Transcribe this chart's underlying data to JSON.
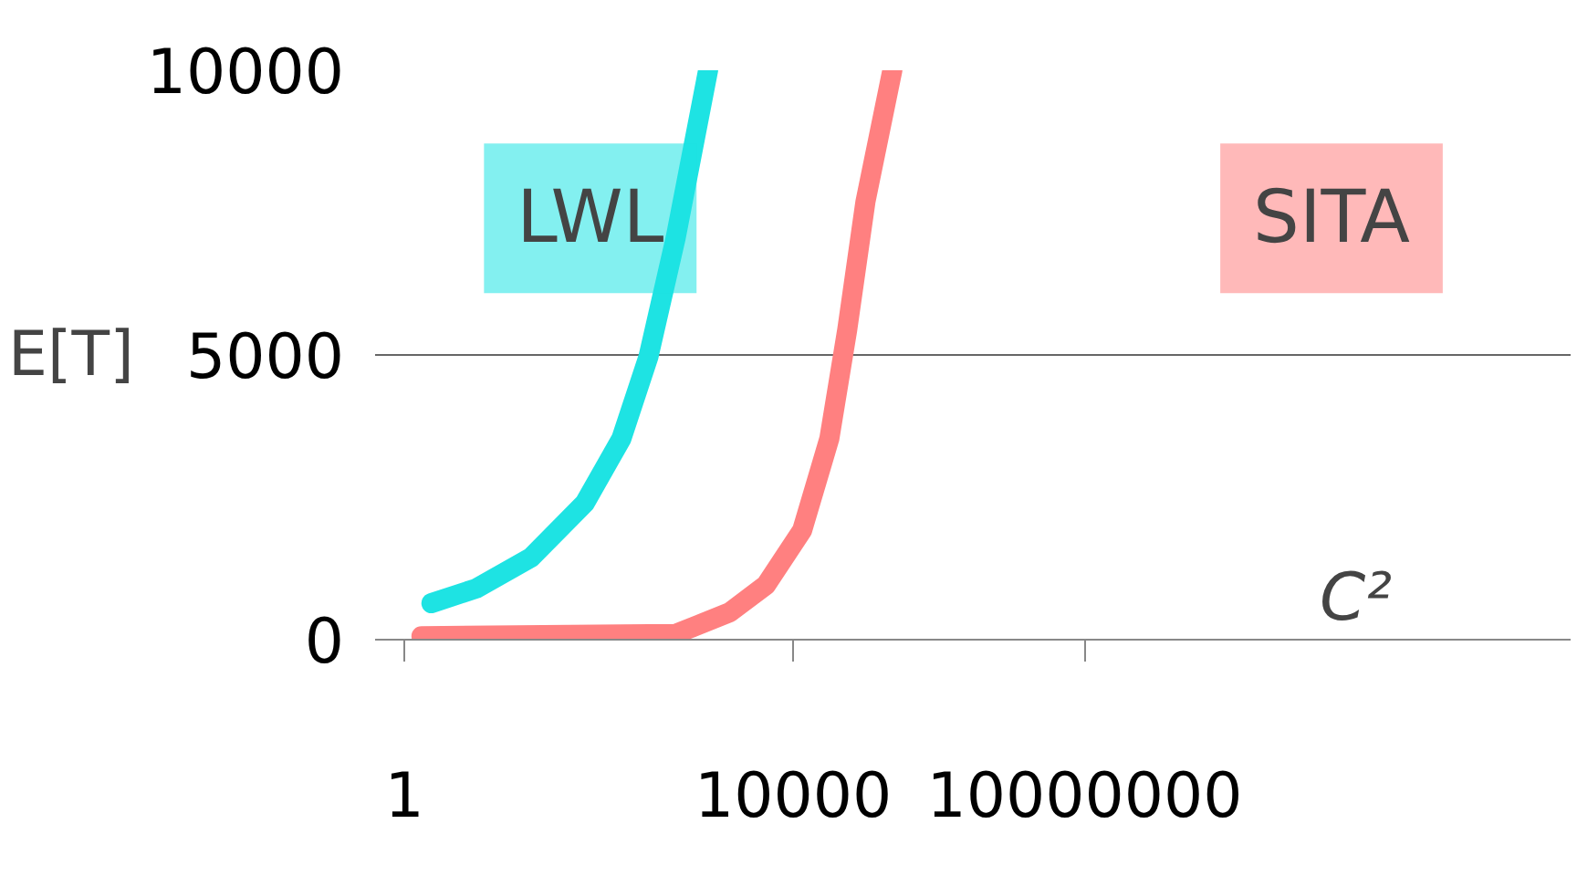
{
  "chart_data": {
    "type": "line",
    "xlabel": "C²",
    "ylabel": "E[T]",
    "log": "x",
    "xlim": [
      0.5,
      1000000000000
    ],
    "xticks": [
      1,
      10000,
      10000000
    ],
    "ylim": [
      0,
      10000
    ],
    "yticks": [
      0,
      5000,
      10000
    ],
    "grid": "y",
    "legend": false,
    "marker": "none",
    "line_style": "solid",
    "series": [
      {
        "name": "LWL",
        "color": "#1ee3e3",
        "x": [
          1.9,
          5.5,
          20,
          72,
          171,
          325,
          618,
          1335
        ],
        "values": [
          640,
          900,
          1440,
          2400,
          3530,
          4970,
          7050,
          10000
        ]
      },
      {
        "name": "SITA",
        "color": "#ff8080",
        "x": [
          1.5,
          618,
          2230,
          5260,
          12400,
          23600,
          36100,
          55500,
          105000
        ],
        "values": [
          60,
          100,
          480,
          960,
          1920,
          3530,
          5450,
          7690,
          10000
        ]
      }
    ]
  }
}
